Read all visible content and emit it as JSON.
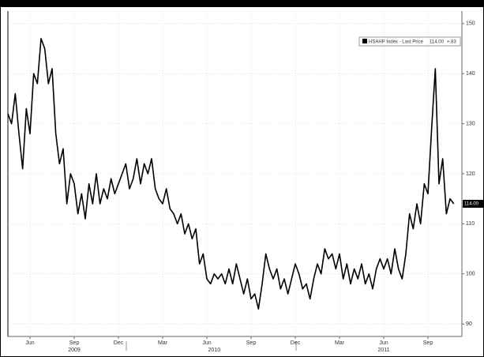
{
  "chart_data": {
    "type": "line",
    "categories": [
      null,
      null,
      null,
      null,
      null,
      null,
      "Jun",
      null,
      null,
      null,
      null,
      null,
      null,
      null,
      null,
      null,
      null,
      null,
      "Sep",
      null,
      null,
      null,
      null,
      null,
      null,
      null,
      null,
      null,
      null,
      null,
      "Dec",
      null,
      null,
      null,
      null,
      null,
      null,
      null,
      null,
      null,
      null,
      null,
      "Mar",
      null,
      null,
      null,
      null,
      null,
      null,
      null,
      null,
      null,
      null,
      null,
      "Jun",
      null,
      null,
      null,
      null,
      null,
      null,
      null,
      null,
      null,
      null,
      null,
      "Sep",
      null,
      null,
      null,
      null,
      null,
      null,
      null,
      null,
      null,
      null,
      null,
      "Dec",
      null,
      null,
      null,
      null,
      null,
      null,
      null,
      null,
      null,
      null,
      null,
      "Mar",
      null,
      null,
      null,
      null,
      null,
      null,
      null,
      null,
      null,
      null,
      null,
      "Jun",
      null,
      null,
      null,
      null,
      null,
      null,
      null,
      null,
      null,
      null,
      null,
      "Sep",
      null,
      null,
      null,
      null,
      null,
      null,
      null
    ],
    "years": [
      null,
      null,
      null,
      null,
      null,
      null,
      null,
      null,
      null,
      null,
      null,
      null,
      null,
      null,
      null,
      null,
      null,
      null,
      "2009",
      null,
      null,
      null,
      null,
      null,
      null,
      null,
      null,
      null,
      null,
      null,
      null,
      null,
      null,
      null,
      null,
      null,
      null,
      null,
      null,
      null,
      null,
      null,
      null,
      null,
      null,
      null,
      null,
      null,
      null,
      null,
      null,
      null,
      null,
      null,
      null,
      null,
      "2010",
      null,
      null,
      null,
      null,
      null,
      null,
      null,
      null,
      null,
      null,
      null,
      null,
      null,
      null,
      null,
      null,
      null,
      null,
      null,
      null,
      null,
      null,
      null,
      null,
      null,
      null,
      null,
      null,
      null,
      null,
      null,
      null,
      null,
      null,
      null,
      null,
      null,
      null,
      null,
      null,
      null,
      null,
      null,
      null,
      null,
      "2011",
      null,
      null,
      null,
      null,
      null,
      null,
      null,
      null,
      null,
      null,
      null,
      null,
      null,
      null,
      null,
      null,
      null,
      null,
      null
    ],
    "series": [
      {
        "name": "HSAHP Index - Last Price",
        "color": "#000000",
        "values": [
          132,
          130,
          136,
          128,
          121,
          133,
          128,
          140,
          138,
          147,
          145,
          138,
          141,
          128,
          122,
          125,
          114,
          120,
          118,
          112,
          116,
          111,
          118,
          114,
          120,
          114,
          117,
          115,
          119,
          116,
          118,
          120,
          122,
          117,
          119,
          123,
          118,
          122,
          120,
          123,
          117,
          115,
          114,
          117,
          113,
          112,
          110,
          112,
          108,
          110,
          107,
          109,
          102,
          104,
          99,
          98,
          100,
          99,
          100,
          98,
          101,
          98,
          102,
          99,
          96,
          99,
          95,
          96,
          93,
          98,
          104,
          101,
          99,
          101,
          97,
          99,
          96,
          99,
          102,
          100,
          97,
          98,
          95,
          99,
          102,
          100,
          105,
          103,
          104,
          101,
          104,
          99,
          102,
          98,
          101,
          99,
          102,
          98,
          100,
          97,
          101,
          103,
          101,
          103,
          100,
          105,
          101,
          99,
          104,
          112,
          109,
          114,
          110,
          118,
          116,
          129,
          141,
          118,
          123,
          112,
          115,
          114
        ]
      }
    ],
    "legend_price": "114.00",
    "legend_change": "+.83",
    "ylim": [
      87.5,
      152.5
    ],
    "yticks": [
      90,
      100,
      110,
      120,
      130,
      140,
      150
    ],
    "grid": true
  }
}
